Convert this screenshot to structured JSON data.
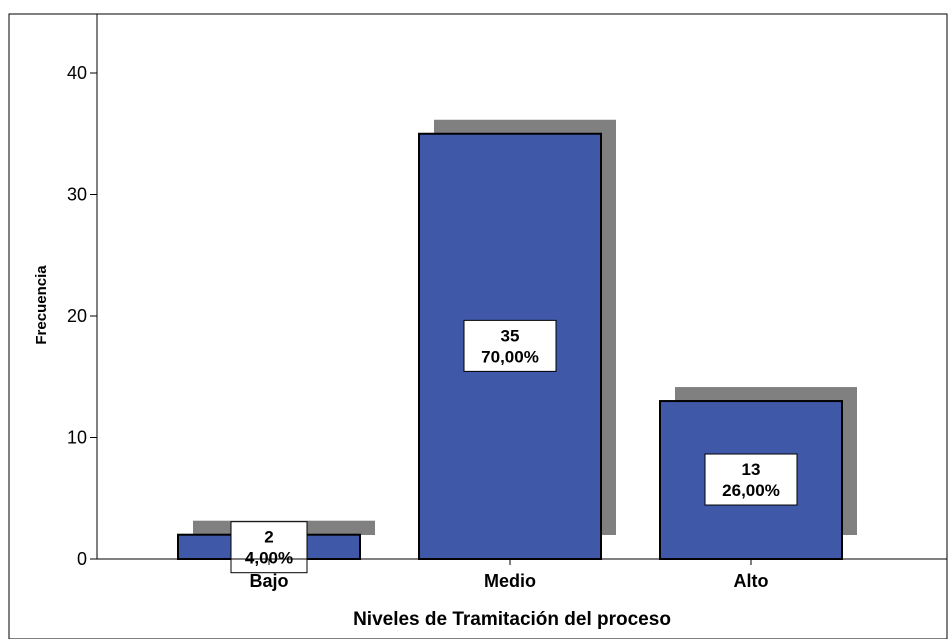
{
  "chart_data": {
    "type": "bar",
    "title": "",
    "xlabel": "Niveles de Tramitación del proceso",
    "ylabel": "Frecuencia",
    "categories": [
      "Bajo",
      "Medio",
      "Alto"
    ],
    "values": [
      2,
      35,
      13
    ],
    "percent_labels": [
      "4,00%",
      "70,00%",
      "26,00%"
    ],
    "data_labels": [
      "2",
      "35",
      "13"
    ],
    "ylim": [
      0,
      44
    ],
    "yticks": [
      0,
      10,
      20,
      30,
      40
    ],
    "grid": false,
    "bar_color": "#3f58a8",
    "shadow_color": "#808080"
  }
}
